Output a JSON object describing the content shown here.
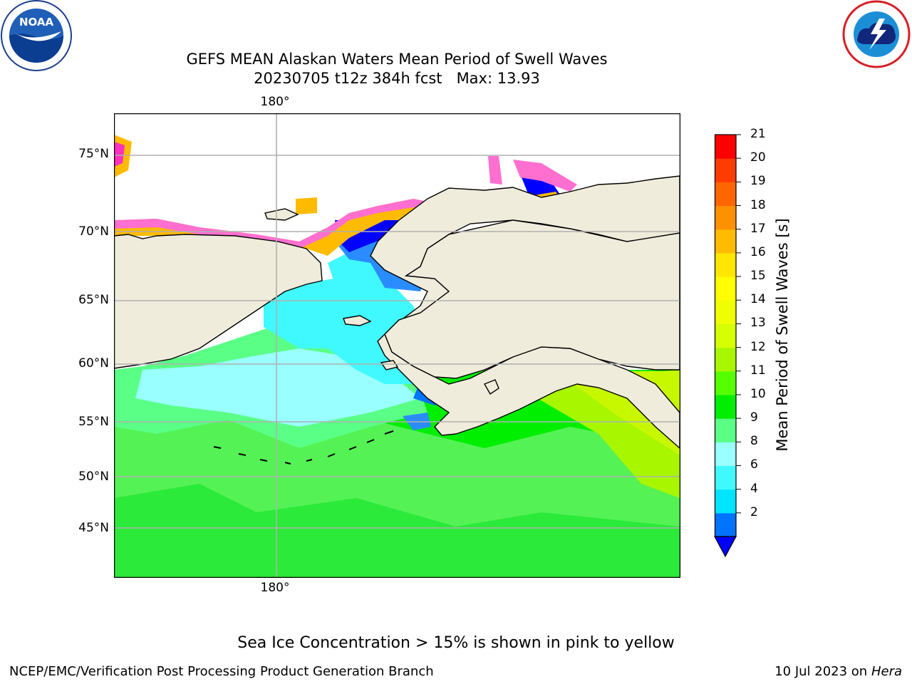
{
  "title_line1": "GEFS MEAN Alaskan Waters Mean Period of Swell Waves",
  "title_line2": "20230705 t12z 384h fcst   Max: 13.93",
  "logos": {
    "left": "noaa-logo",
    "right": "nws-logo"
  },
  "map": {
    "lon_label_top": "180°",
    "lon_label_bottom": "180°",
    "lat_labels": [
      "75°N",
      "70°N",
      "65°N",
      "60°N",
      "55°N",
      "50°N",
      "45°N"
    ],
    "land_color": "#efecdc",
    "grid": true,
    "coastlines": true
  },
  "colorbar": {
    "label": "Mean Period of Swell Waves [s]",
    "ticks": [
      "21",
      "20",
      "19",
      "18",
      "17",
      "16",
      "15",
      "14",
      "13",
      "12",
      "11",
      "10",
      "9",
      "8",
      "6",
      "4",
      "2"
    ],
    "levels": [
      2,
      4,
      6,
      8,
      9,
      10,
      11,
      12,
      13,
      14,
      15,
      16,
      17,
      18,
      19,
      20,
      21
    ],
    "colors": [
      "#0073ff",
      "#00e5ff",
      "#40f9ff",
      "#99ffff",
      "#5aff86",
      "#00ef00",
      "#55ff00",
      "#a8f600",
      "#d6ff00",
      "#f0ff00",
      "#ffff00",
      "#ffe600",
      "#ffbb00",
      "#ff9000",
      "#ff6600",
      "#ff3c00",
      "#ff0000"
    ],
    "under_color": "#0000ff"
  },
  "subtitle": "Sea Ice Concentration > 15% is shown in pink to yellow",
  "footer": {
    "left": "NCEP/EMC/Verification Post Processing Product Generation Branch",
    "right_date": "10 Jul 2023 on",
    "right_host": "Hera"
  }
}
